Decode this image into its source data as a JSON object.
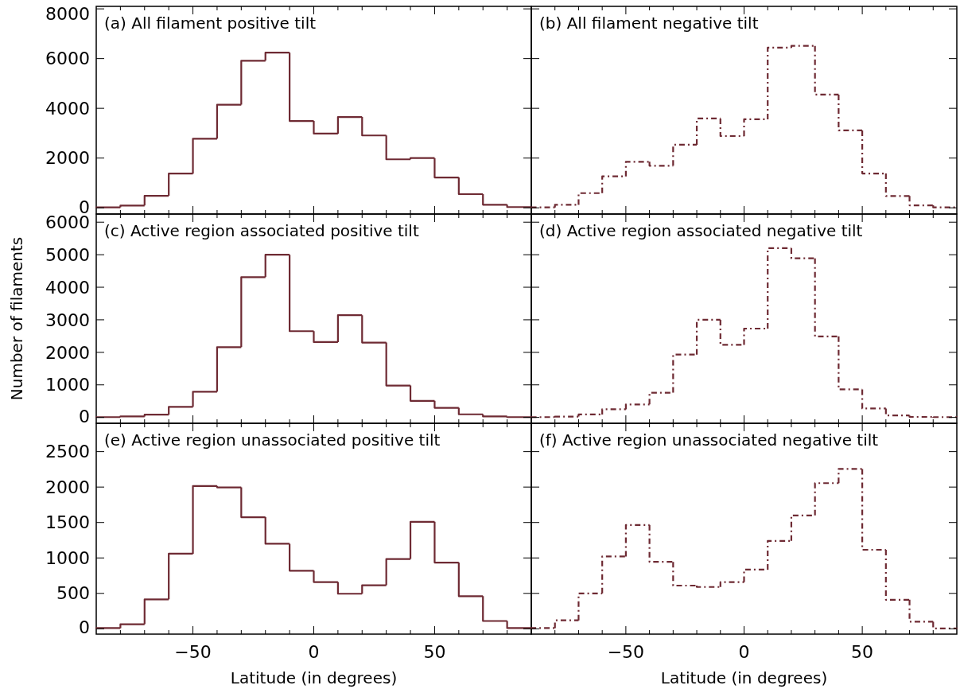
{
  "chart_data": [
    {
      "type": "histogram",
      "annotations": [
        "(a) All filament positive tilt"
      ],
      "bins": [
        -90,
        -80,
        -70,
        -60,
        -50,
        -40,
        -30,
        -20,
        -10,
        0,
        10,
        20,
        30,
        40,
        50,
        60,
        70,
        80,
        90
      ],
      "values": [
        20,
        90,
        485,
        1375,
        2780,
        4145,
        5915,
        6240,
        3490,
        2985,
        3650,
        2910,
        1950,
        2000,
        1220,
        550,
        125,
        30
      ],
      "color": "#6e2a33",
      "line_style": "solid",
      "xlim": [
        -90,
        90
      ],
      "ylim": [
        -250,
        8100
      ],
      "xticks": [
        {
          "value": -80,
          "label": null
        },
        {
          "value": -70,
          "label": null
        },
        {
          "value": -60,
          "label": null
        },
        -50,
        {
          "value": -40,
          "label": null
        },
        {
          "value": -30,
          "label": null
        },
        {
          "value": -20,
          "label": null
        },
        {
          "value": -10,
          "label": null
        },
        0,
        {
          "value": 10,
          "label": null
        },
        {
          "value": 20,
          "label": null
        },
        {
          "value": 30,
          "label": null
        },
        {
          "value": 40,
          "label": null
        },
        50,
        {
          "value": 60,
          "label": null
        },
        {
          "value": 70,
          "label": null
        },
        {
          "value": 80,
          "label": null
        }
      ],
      "yticks": [
        0,
        2000,
        4000,
        6000,
        8000
      ],
      "tick_labels": "y",
      "grid": false
    },
    {
      "type": "histogram",
      "annotations": [
        "(b) All filament negative tilt"
      ],
      "bins": [
        -90,
        -80,
        -70,
        -60,
        -50,
        -40,
        -30,
        -20,
        -10,
        0,
        10,
        20,
        30,
        40,
        50,
        60,
        70,
        80,
        90
      ],
      "values": [
        15,
        120,
        590,
        1265,
        1850,
        1690,
        2535,
        3590,
        2885,
        3560,
        6440,
        6510,
        4550,
        3110,
        1380,
        475,
        100,
        15
      ],
      "color": "#6e2a33",
      "line_style": "dashdot",
      "xlim": [
        -90,
        90
      ],
      "ylim": [
        -250,
        8100
      ],
      "xticks": [
        {
          "value": -80,
          "label": null
        },
        {
          "value": -70,
          "label": null
        },
        {
          "value": -60,
          "label": null
        },
        -50,
        {
          "value": -40,
          "label": null
        },
        {
          "value": -30,
          "label": null
        },
        {
          "value": -20,
          "label": null
        },
        {
          "value": -10,
          "label": null
        },
        0,
        {
          "value": 10,
          "label": null
        },
        {
          "value": 20,
          "label": null
        },
        {
          "value": 30,
          "label": null
        },
        {
          "value": 40,
          "label": null
        },
        50,
        {
          "value": 60,
          "label": null
        },
        {
          "value": 70,
          "label": null
        },
        {
          "value": 80,
          "label": null
        }
      ],
      "yticks": [
        0,
        2000,
        4000,
        6000,
        8000
      ],
      "tick_labels": false,
      "grid": false
    },
    {
      "type": "histogram",
      "ylabel": "Number of filaments",
      "annotations": [
        "(c) Active region associated positive tilt"
      ],
      "bins": [
        -90,
        -80,
        -70,
        -60,
        -50,
        -40,
        -30,
        -20,
        -10,
        0,
        10,
        20,
        30,
        40,
        50,
        60,
        70,
        80,
        90
      ],
      "values": [
        10,
        30,
        85,
        325,
        790,
        2160,
        4310,
        5000,
        2650,
        2315,
        3140,
        2300,
        980,
        510,
        295,
        95,
        30,
        10
      ],
      "color": "#6e2a33",
      "line_style": "solid",
      "xlim": [
        -90,
        90
      ],
      "ylim": [
        -180,
        6250
      ],
      "xticks": [
        {
          "value": -80,
          "label": null
        },
        {
          "value": -70,
          "label": null
        },
        {
          "value": -60,
          "label": null
        },
        -50,
        {
          "value": -40,
          "label": null
        },
        {
          "value": -30,
          "label": null
        },
        {
          "value": -20,
          "label": null
        },
        {
          "value": -10,
          "label": null
        },
        0,
        {
          "value": 10,
          "label": null
        },
        {
          "value": 20,
          "label": null
        },
        {
          "value": 30,
          "label": null
        },
        {
          "value": 40,
          "label": null
        },
        50,
        {
          "value": 60,
          "label": null
        },
        {
          "value": 70,
          "label": null
        },
        {
          "value": 80,
          "label": null
        }
      ],
      "yticks": [
        0,
        1000,
        2000,
        3000,
        4000,
        5000,
        6000
      ],
      "tick_labels": "y",
      "grid": false
    },
    {
      "type": "histogram",
      "annotations": [
        "(d) Active region associated negative tilt"
      ],
      "bins": [
        -90,
        -80,
        -70,
        -60,
        -50,
        -40,
        -30,
        -20,
        -10,
        0,
        10,
        20,
        30,
        40,
        50,
        60,
        70,
        80,
        90
      ],
      "values": [
        10,
        25,
        90,
        250,
        400,
        760,
        1930,
        3000,
        2230,
        2730,
        5200,
        4890,
        2490,
        860,
        275,
        60,
        15,
        10
      ],
      "color": "#6e2a33",
      "line_style": "dashdot",
      "xlim": [
        -90,
        90
      ],
      "ylim": [
        -180,
        6250
      ],
      "xticks": [
        {
          "value": -80,
          "label": null
        },
        {
          "value": -70,
          "label": null
        },
        {
          "value": -60,
          "label": null
        },
        -50,
        {
          "value": -40,
          "label": null
        },
        {
          "value": -30,
          "label": null
        },
        {
          "value": -20,
          "label": null
        },
        {
          "value": -10,
          "label": null
        },
        0,
        {
          "value": 10,
          "label": null
        },
        {
          "value": 20,
          "label": null
        },
        {
          "value": 30,
          "label": null
        },
        {
          "value": 40,
          "label": null
        },
        50,
        {
          "value": 60,
          "label": null
        },
        {
          "value": 70,
          "label": null
        },
        {
          "value": 80,
          "label": null
        }
      ],
      "yticks": [
        0,
        1000,
        2000,
        3000,
        4000,
        5000,
        6000
      ],
      "tick_labels": false,
      "grid": false
    },
    {
      "type": "histogram",
      "xlabel": "Latitude (in degrees)",
      "annotations": [
        "(e) Active region unassociated positive tilt"
      ],
      "bins": [
        -90,
        -80,
        -70,
        -60,
        -50,
        -40,
        -30,
        -20,
        -10,
        0,
        10,
        20,
        30,
        40,
        50,
        60,
        70,
        80,
        90
      ],
      "values": [
        10,
        65,
        415,
        1060,
        2015,
        1995,
        1575,
        1200,
        820,
        660,
        495,
        615,
        985,
        1510,
        935,
        460,
        110,
        10
      ],
      "color": "#6e2a33",
      "line_style": "solid",
      "xlim": [
        -90,
        90
      ],
      "ylim": [
        -75,
        2900
      ],
      "xticks": [
        {
          "value": -80,
          "label": null
        },
        {
          "value": -70,
          "label": null
        },
        {
          "value": -60,
          "label": null
        },
        -50,
        {
          "value": -40,
          "label": null
        },
        {
          "value": -30,
          "label": null
        },
        {
          "value": -20,
          "label": null
        },
        {
          "value": -10,
          "label": null
        },
        0,
        {
          "value": 10,
          "label": null
        },
        {
          "value": 20,
          "label": null
        },
        {
          "value": 30,
          "label": null
        },
        {
          "value": 40,
          "label": null
        },
        50,
        {
          "value": 60,
          "label": null
        },
        {
          "value": 70,
          "label": null
        },
        {
          "value": 80,
          "label": null
        }
      ],
      "yticks": [
        0,
        500,
        1000,
        1500,
        2000,
        2500
      ],
      "grid": false
    },
    {
      "type": "histogram",
      "xlabel": "Latitude (in degrees)",
      "annotations": [
        "(f) Active region unassociated negative tilt"
      ],
      "bins": [
        -90,
        -80,
        -70,
        -60,
        -50,
        -40,
        -30,
        -20,
        -10,
        0,
        10,
        20,
        30,
        40,
        50,
        60,
        70,
        80,
        90
      ],
      "values": [
        10,
        120,
        500,
        1020,
        1465,
        945,
        610,
        590,
        660,
        835,
        1240,
        1600,
        2055,
        2255,
        1115,
        410,
        100,
        5
      ],
      "color": "#6e2a33",
      "line_style": "dashdot",
      "xlim": [
        -90,
        90
      ],
      "ylim": [
        -75,
        2900
      ],
      "xticks": [
        {
          "value": -80,
          "label": null
        },
        {
          "value": -70,
          "label": null
        },
        {
          "value": -60,
          "label": null
        },
        -50,
        {
          "value": -40,
          "label": null
        },
        {
          "value": -30,
          "label": null
        },
        {
          "value": -20,
          "label": null
        },
        {
          "value": -10,
          "label": null
        },
        0,
        {
          "value": 10,
          "label": null
        },
        {
          "value": 20,
          "label": null
        },
        {
          "value": 30,
          "label": null
        },
        {
          "value": 40,
          "label": null
        },
        50,
        {
          "value": 60,
          "label": null
        },
        {
          "value": 70,
          "label": null
        },
        {
          "value": 80,
          "label": null
        }
      ],
      "yticks": [
        0,
        500,
        1000,
        1500,
        2000,
        2500
      ],
      "tick_labels": "x",
      "grid": false
    }
  ]
}
